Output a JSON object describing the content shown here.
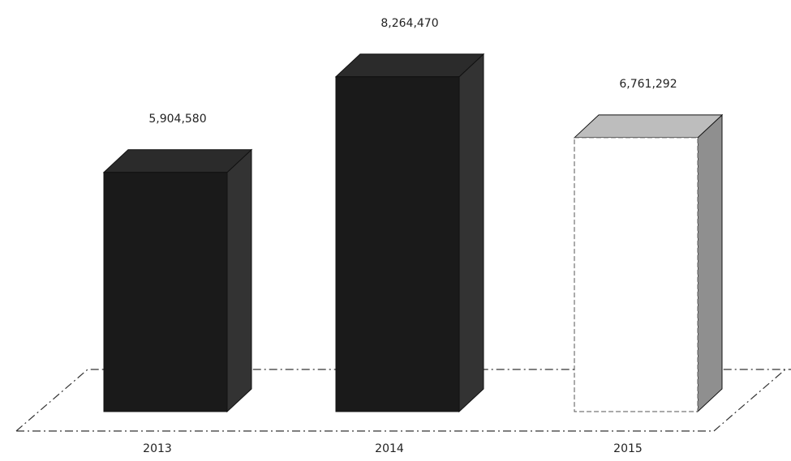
{
  "chart_data": {
    "type": "bar",
    "categories": [
      "2013",
      "2014",
      "2015"
    ],
    "values": [
      5904580,
      8264470,
      6761292
    ],
    "value_labels": [
      "5,904,580",
      "8,264,470",
      "6,761,292"
    ],
    "title": "",
    "xlabel": "",
    "ylabel": "",
    "ylim": [
      0,
      8800000
    ],
    "grid": false,
    "legend": "none",
    "style": "3d-column",
    "colors": {
      "dark_front": "#1a1a1a",
      "dark_top": "#2b2b2b",
      "dark_side": "#333333",
      "light_front": "#ffffff",
      "light_top": "#bdbdbd",
      "light_side": "#8f8f8f",
      "axis": "#333333"
    }
  }
}
